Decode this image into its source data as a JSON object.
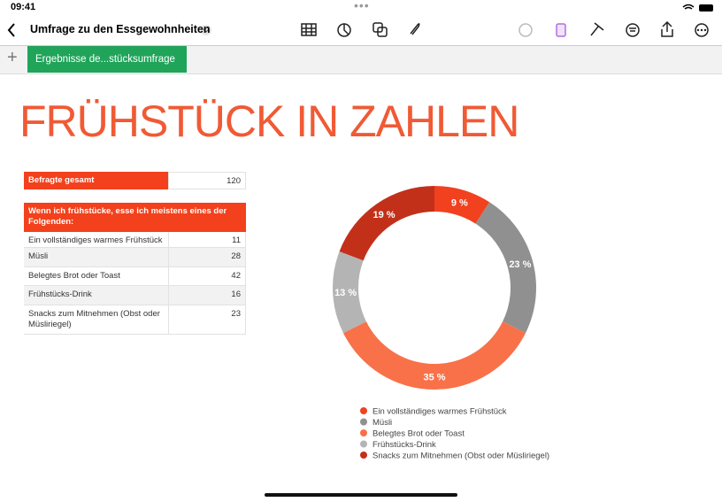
{
  "status_bar": {
    "time": "09:41"
  },
  "toolbar": {
    "title": "Umfrage zu den Essgewohnheiten"
  },
  "tabs": {
    "sheets": [
      "Ergebnisse de...stücksumfrage"
    ]
  },
  "sheet": {
    "title": "FRÜHSTÜCK IN ZAHLEN"
  },
  "table": {
    "summary": [
      "Befragte gesamt",
      "120"
    ],
    "header": "Wenn ich frühstücke, esse ich meistens eines der Folgenden:",
    "rows": [
      [
        "Ein vollständiges warmes Frühstück",
        "11"
      ],
      [
        "Müsli",
        "28"
      ],
      [
        "Belegtes Brot oder Toast",
        "42"
      ],
      [
        "Frühstücks-Drink",
        "16"
      ],
      [
        "Snacks zum Mitnehmen (Obst oder Müsliriegel)",
        "23"
      ]
    ]
  },
  "chart_data": {
    "type": "donut",
    "categories": [
      "Ein vollständiges warmes Frühstück",
      "Müsli",
      "Belegtes Brot oder Toast",
      "Frühstücks-Drink",
      "Snacks zum Mitnehmen (Obst oder Müsliriegel)"
    ],
    "values": [
      9,
      23,
      35,
      13,
      19
    ],
    "value_labels": [
      "9 %",
      "23 %",
      "35 %",
      "13 %",
      "19 %"
    ],
    "colors": [
      "#f1411f",
      "#909090",
      "#f87149",
      "#b4b4b4",
      "#c3301a"
    ]
  }
}
